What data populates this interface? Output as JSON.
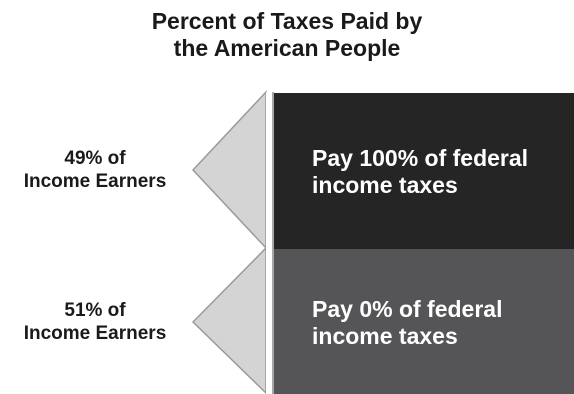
{
  "title": {
    "line1": "Percent of Taxes Paid by",
    "line2": "the American People"
  },
  "rows": [
    {
      "label_line1": "49% of",
      "label_line2": "Income Earners",
      "text_line1": "Pay 100% of federal",
      "text_line2": "income taxes",
      "color": "#252525"
    },
    {
      "label_line1": "51% of",
      "label_line2": "Income Earners",
      "text_line1": "Pay 0% of federal",
      "text_line2": "income taxes",
      "color": "#555557"
    }
  ],
  "colors": {
    "arrow_fill": "#d4d4d4",
    "arrow_stroke": "#9a9a9a"
  }
}
